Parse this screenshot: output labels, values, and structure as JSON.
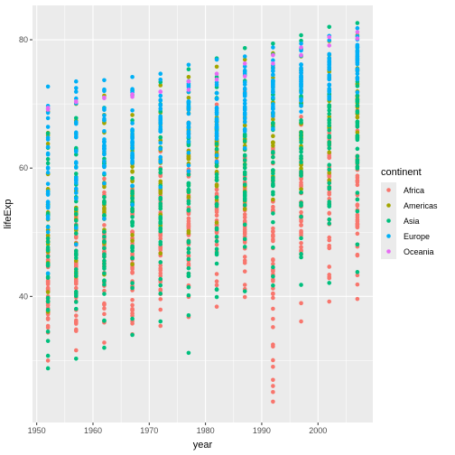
{
  "chart_data": {
    "type": "scatter",
    "title": "",
    "xlabel": "year",
    "ylabel": "lifeExp",
    "xlim": [
      1949.25,
      2009.75
    ],
    "ylim": [
      20.35,
      85.35
    ],
    "x_ticks": [
      1950,
      1960,
      1970,
      1980,
      1990,
      2000
    ],
    "y_ticks": [
      40,
      60,
      80
    ],
    "grid": true,
    "legend": {
      "title": "continent",
      "position": "right"
    },
    "colors": {
      "Africa": "#F8766D",
      "Americas": "#A3A500",
      "Asia": "#00BF7D",
      "Europe": "#00B0F6",
      "Oceania": "#E76BF3",
      "panel": "#EBEBEB",
      "grid": "#FFFFFF"
    },
    "series": [
      {
        "name": "Africa",
        "years": [
          1952,
          1957,
          1962,
          1967,
          1972,
          1977,
          1982,
          1987,
          1992,
          1997,
          2002,
          2007
        ],
        "min": [
          30.0,
          31.6,
          32.8,
          34.1,
          35.4,
          36.8,
          38.4,
          39.9,
          23.6,
          36.1,
          39.2,
          39.6
        ],
        "max": [
          52.7,
          58.1,
          60.2,
          61.6,
          64.3,
          67.1,
          69.9,
          71.9,
          73.6,
          74.8,
          75.7,
          76.4
        ]
      },
      {
        "name": "Americas",
        "years": [
          1952,
          1957,
          1962,
          1967,
          1972,
          1977,
          1982,
          1987,
          1992,
          1997,
          2002,
          2007
        ],
        "min": [
          37.6,
          40.7,
          43.4,
          45.0,
          46.7,
          49.9,
          51.5,
          53.6,
          55.1,
          56.7,
          58.1,
          60.9
        ],
        "max": [
          68.8,
          70.0,
          71.3,
          72.1,
          72.9,
          74.2,
          75.8,
          76.9,
          77.9,
          78.6,
          79.8,
          80.7
        ]
      },
      {
        "name": "Asia",
        "years": [
          1952,
          1957,
          1962,
          1967,
          1972,
          1977,
          1982,
          1987,
          1992,
          1997,
          2002,
          2007
        ],
        "min": [
          28.8,
          30.3,
          32.0,
          34.0,
          36.1,
          31.2,
          39.9,
          40.8,
          41.7,
          41.8,
          42.1,
          43.8
        ],
        "max": [
          65.4,
          67.8,
          69.4,
          71.4,
          73.4,
          75.4,
          77.1,
          78.7,
          79.4,
          80.7,
          82.0,
          82.6
        ]
      },
      {
        "name": "Europe",
        "years": [
          1952,
          1957,
          1962,
          1967,
          1972,
          1977,
          1982,
          1987,
          1992,
          1997,
          2002,
          2007
        ],
        "min": [
          43.6,
          48.1,
          52.1,
          54.3,
          57.0,
          59.5,
          61.0,
          63.1,
          66.1,
          68.8,
          70.8,
          71.8
        ],
        "max": [
          72.7,
          73.5,
          73.7,
          74.2,
          74.7,
          76.1,
          76.9,
          77.4,
          78.8,
          79.4,
          80.6,
          81.8
        ]
      },
      {
        "name": "Oceania",
        "years": [
          1952,
          1957,
          1962,
          1967,
          1972,
          1977,
          1982,
          1987,
          1992,
          1997,
          2002,
          2007
        ],
        "min": [
          69.1,
          70.3,
          70.9,
          71.1,
          71.9,
          72.2,
          73.8,
          74.3,
          76.3,
          77.6,
          79.1,
          80.2
        ],
        "max": [
          69.4,
          70.4,
          71.0,
          71.5,
          71.9,
          73.5,
          74.7,
          76.3,
          77.6,
          78.8,
          80.4,
          81.2
        ]
      }
    ]
  }
}
